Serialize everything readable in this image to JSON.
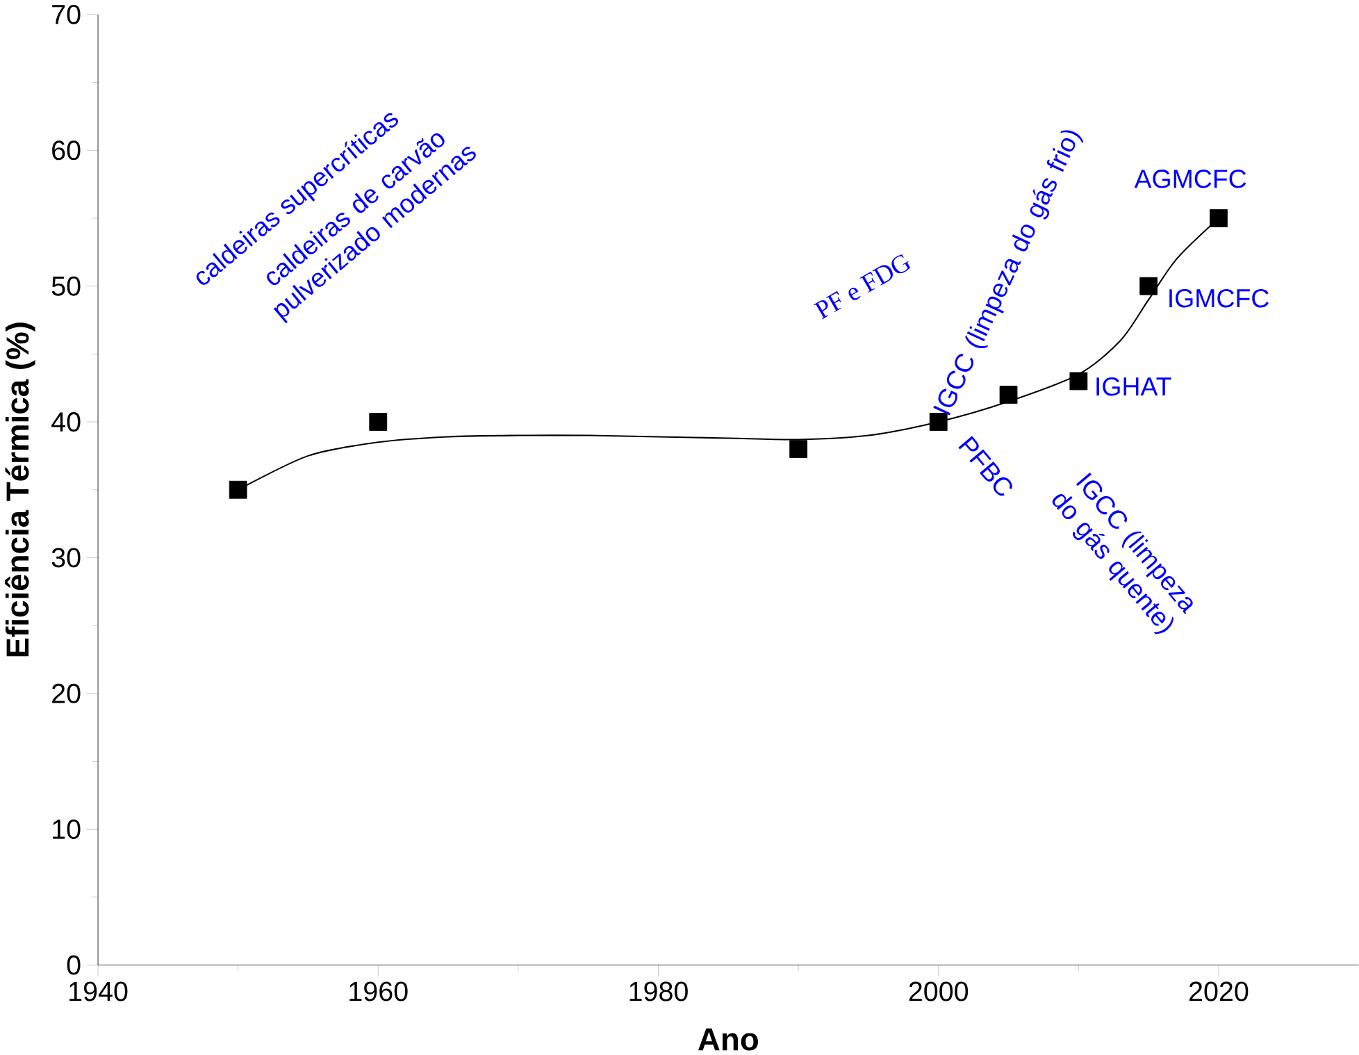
{
  "chart_data": {
    "type": "scatter",
    "xlabel": "Ano",
    "ylabel": "Eficiência Térmica (%)",
    "xlim": [
      1940,
      2030
    ],
    "ylim": [
      0,
      70
    ],
    "xticks": [
      1940,
      1960,
      1980,
      2000,
      2020
    ],
    "yticks": [
      0,
      10,
      20,
      30,
      40,
      50,
      60,
      70
    ],
    "marker": "square",
    "series": [
      {
        "color": "#000000",
        "x": [
          1950,
          1960,
          1990,
          2000,
          2005,
          2010,
          2015,
          2020
        ],
        "values": [
          35,
          40,
          38,
          40,
          42,
          43,
          50,
          55
        ]
      },
      {
        "type": "line",
        "color": "#000000",
        "marker": "none",
        "line_style": "solid",
        "x": [
          1950,
          1955,
          1960,
          1965,
          1970,
          1975,
          1980,
          1985,
          1990,
          1995,
          2000,
          2005,
          2010,
          2013,
          2015,
          2017,
          2020
        ],
        "values": [
          35,
          37.5,
          38.5,
          38.9,
          39,
          39,
          38.9,
          38.8,
          38.7,
          39,
          40,
          41.5,
          43.5,
          46,
          49,
          52,
          55
        ]
      }
    ],
    "annotations": [
      "caldeiras supercríticas",
      "caldeiras de carvão pulverizado modernas",
      "PF e FDG",
      "IGCC (limpeza do gás frio)",
      {
        "text": "PFBC",
        "x": 2000,
        "y": 40
      },
      "IGCC (limpeza do gás quente)",
      {
        "text": "IGHAT",
        "x": 2010,
        "y": 43
      },
      {
        "text": "IGMCFC",
        "x": 2015,
        "y": 50
      },
      {
        "text": "AGMCFC",
        "x": 2020,
        "y": 55
      }
    ]
  }
}
